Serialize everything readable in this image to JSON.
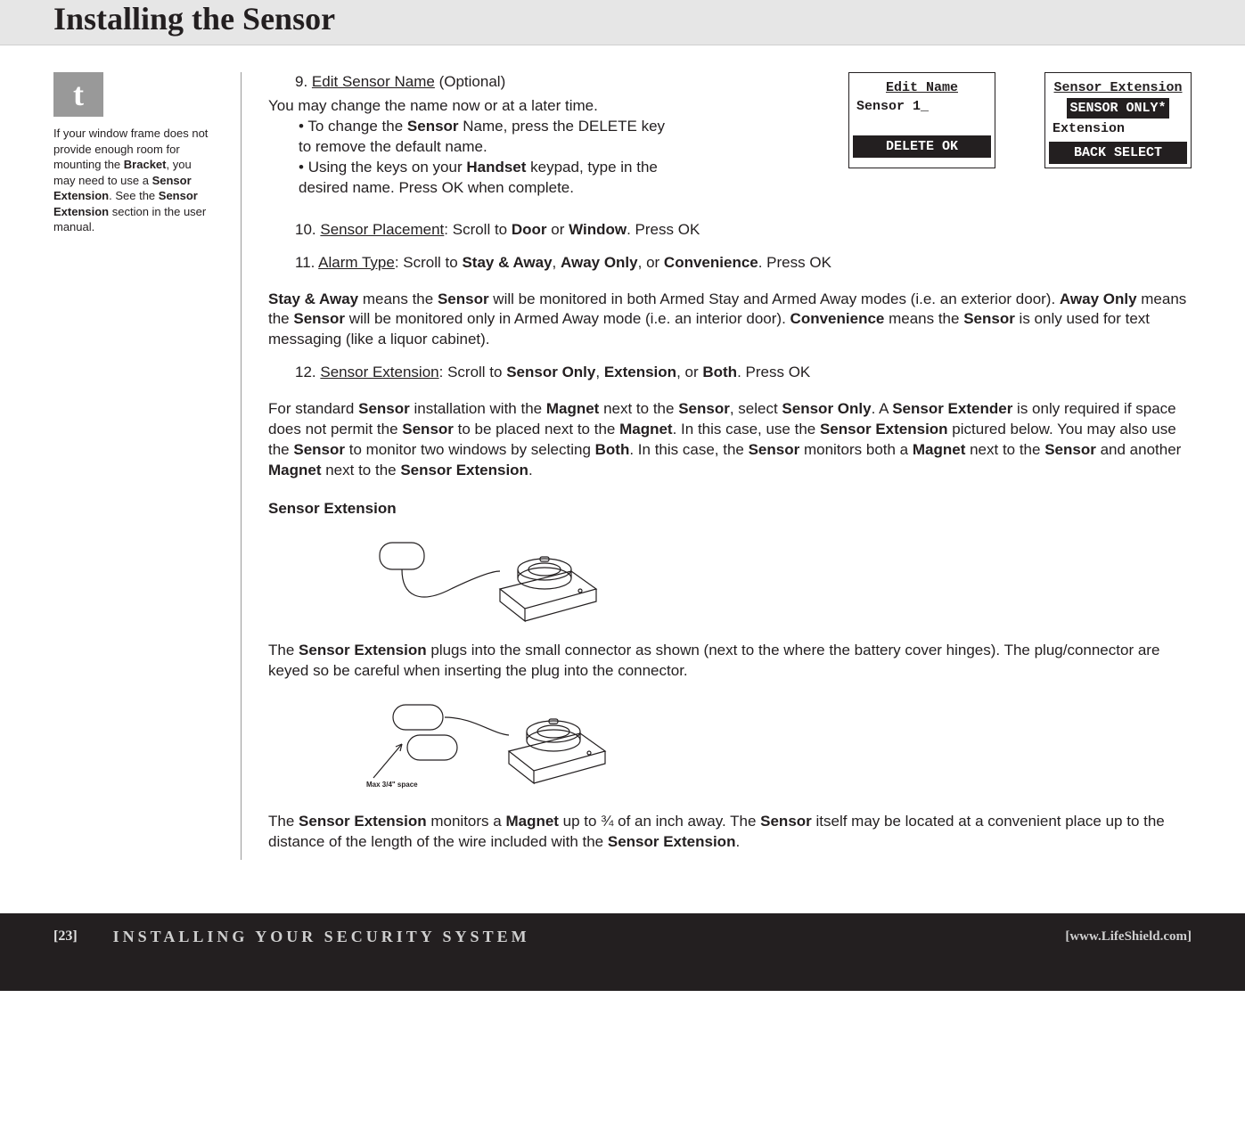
{
  "header": {
    "title": "Installing the Sensor"
  },
  "tip": {
    "glyph": "t",
    "text_parts": [
      {
        "t": "If your window frame does not provide enough room for mounting the "
      },
      {
        "t": "Bracket",
        "b": true
      },
      {
        "t": ", you may need to use a "
      },
      {
        "t": "Sensor Extension",
        "b": true
      },
      {
        "t": ". See the "
      },
      {
        "t": "Sensor Extension",
        "b": true
      },
      {
        "t": " section in the user manual."
      }
    ]
  },
  "screens": {
    "edit_name": {
      "title": "Edit Name",
      "line2": "Sensor 1_",
      "btn_left": "DELETE",
      "btn_right": "OK"
    },
    "sensor_ext": {
      "title": "Sensor Extension",
      "highlight": "SENSOR ONLY*",
      "line3": "Extension",
      "btn_left": "BACK",
      "btn_right": "SELECT"
    }
  },
  "steps": {
    "s9": {
      "num": "9.",
      "label": "Edit Sensor Name",
      "rest": " (Optional)",
      "sub": "You may change the name now or at a later time.",
      "bullets": [
        [
          {
            "t": "To change the "
          },
          {
            "t": "Sensor",
            "b": true
          },
          {
            "t": " Name, press the DELETE key to remove the default name."
          }
        ],
        [
          {
            "t": "Using the keys on your "
          },
          {
            "t": "Handset",
            "b": true
          },
          {
            "t": " keypad, type in the desired name. Press OK when complete."
          }
        ]
      ]
    },
    "s10": {
      "num": "10.",
      "label": "Sensor Placement",
      "rest_parts": [
        {
          "t": ": Scroll to "
        },
        {
          "t": "Door",
          "b": true
        },
        {
          "t": " or "
        },
        {
          "t": "Window",
          "b": true
        },
        {
          "t": ". Press OK"
        }
      ]
    },
    "s11": {
      "num": "11.",
      "label": "Alarm Type",
      "rest_parts": [
        {
          "t": ": Scroll to "
        },
        {
          "t": "Stay & Away",
          "b": true
        },
        {
          "t": ", "
        },
        {
          "t": "Away Only",
          "b": true
        },
        {
          "t": ", or "
        },
        {
          "t": "Convenience",
          "b": true
        },
        {
          "t": ". Press OK"
        }
      ]
    },
    "s12": {
      "num": "12.",
      "label": "Sensor Extension",
      "rest_parts": [
        {
          "t": ": Scroll to "
        },
        {
          "t": "Sensor Only",
          "b": true
        },
        {
          "t": ", "
        },
        {
          "t": "Extension",
          "b": true
        },
        {
          "t": ", or "
        },
        {
          "t": "Both",
          "b": true
        },
        {
          "t": ". Press OK"
        }
      ]
    }
  },
  "para_alarm_types": [
    {
      "t": "Stay & Away",
      "b": true
    },
    {
      "t": " means the "
    },
    {
      "t": "Sensor",
      "b": true
    },
    {
      "t": " will be monitored in both Armed Stay and Armed Away modes (i.e. an exterior door). "
    },
    {
      "t": "Away Only",
      "b": true
    },
    {
      "t": " means the "
    },
    {
      "t": "Sensor",
      "b": true
    },
    {
      "t": " will be monitored only in Armed Away mode (i.e. an interior door). "
    },
    {
      "t": "Convenience",
      "b": true
    },
    {
      "t": " means the "
    },
    {
      "t": "Sensor",
      "b": true
    },
    {
      "t": " is only used for text messaging (like a liquor cabinet)."
    }
  ],
  "para_sensor_ext": [
    {
      "t": "For standard "
    },
    {
      "t": "Sensor",
      "b": true
    },
    {
      "t": " installation with the "
    },
    {
      "t": "Magnet",
      "b": true
    },
    {
      "t": " next to the "
    },
    {
      "t": "Sensor",
      "b": true
    },
    {
      "t": ", select "
    },
    {
      "t": "Sensor Only",
      "b": true
    },
    {
      "t": ". A "
    },
    {
      "t": "Sensor Extender",
      "b": true
    },
    {
      "t": " is only required if space does not permit the "
    },
    {
      "t": "Sensor",
      "b": true
    },
    {
      "t": " to be placed next to the "
    },
    {
      "t": "Magnet",
      "b": true
    },
    {
      "t": ". In this case, use the "
    },
    {
      "t": "Sensor Extension",
      "b": true
    },
    {
      "t": " pictured below. You may also use the "
    },
    {
      "t": "Sensor",
      "b": true
    },
    {
      "t": " to monitor two windows by selecting "
    },
    {
      "t": "Both",
      "b": true
    },
    {
      "t": ". In this case, the "
    },
    {
      "t": "Sensor",
      "b": true
    },
    {
      "t": " monitors both a "
    },
    {
      "t": "Magnet",
      "b": true
    },
    {
      "t": " next to the "
    },
    {
      "t": "Sensor",
      "b": true
    },
    {
      "t": " and another "
    },
    {
      "t": "Magnet",
      "b": true
    },
    {
      "t": " next to the "
    },
    {
      "t": "Sensor Extension",
      "b": true
    },
    {
      "t": "."
    }
  ],
  "sensor_ext_heading": "Sensor Extension",
  "para_plug": [
    {
      "t": "The "
    },
    {
      "t": "Sensor Extension",
      "b": true
    },
    {
      "t": " plugs into the small connector as shown (next to the where the battery cover hinges). The plug/connector are keyed so be careful when inserting the plug into the connector."
    }
  ],
  "para_monitor": [
    {
      "t": "The "
    },
    {
      "t": "Sensor Extension",
      "b": true
    },
    {
      "t": " monitors a "
    },
    {
      "t": "Magnet",
      "b": true
    },
    {
      "t": " up to ¾ of an inch away. The "
    },
    {
      "t": "Sensor",
      "b": true
    },
    {
      "t": " itself may be located at a convenient place up to the distance of the length of the wire included with the "
    },
    {
      "t": "Sensor Extension",
      "b": true
    },
    {
      "t": "."
    }
  ],
  "figure2_label": "Max 3/4\" space",
  "footer": {
    "page": "[23]",
    "title": "INSTALLING YOUR SECURITY SYSTEM",
    "url": "[www.LifeShield.com]"
  },
  "colors": {
    "header_bg": "#e6e6e6",
    "text": "#231f20",
    "tip_bg": "#999999",
    "footer_bg": "#231f20",
    "footer_fg": "#cfcfcf"
  }
}
